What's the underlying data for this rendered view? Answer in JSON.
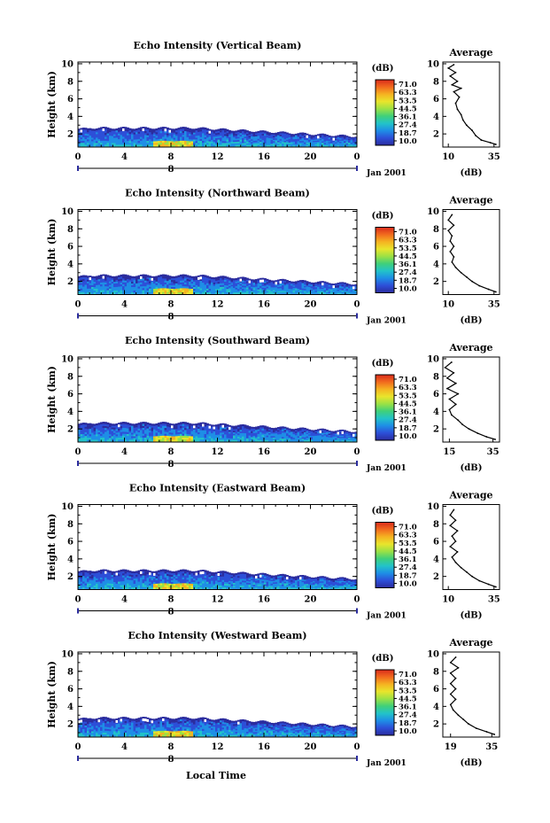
{
  "figure": {
    "bottom_xlabel": "Local Time",
    "colorbar_unit": "(dB)",
    "colorbar_labels": [
      "71.0",
      "63.3",
      "53.5",
      "44.5",
      "36.1",
      "27.4",
      "18.7",
      "10.0"
    ],
    "colorbar_colors": [
      "#d92a1b",
      "#f26b1e",
      "#f5b321",
      "#e9e52c",
      "#9be145",
      "#3fd07a",
      "#22c3c9",
      "#1e8ee6",
      "#2d4fd8",
      "#2b2c9e"
    ],
    "date_label": "Jan 2001",
    "cursor_label": "8"
  },
  "chart_data": [
    {
      "type": "heatmap",
      "title": "Echo Intensity (Vertical Beam)",
      "ylabel": "Height (km)",
      "x_ticks": [
        "0",
        "4",
        "8",
        "12",
        "16",
        "20",
        "0"
      ],
      "y_ticks": [
        "2",
        "4",
        "6",
        "8",
        "10"
      ],
      "xlim": [
        0,
        24
      ],
      "ylim": [
        0.5,
        10.2
      ],
      "profile": {
        "title": "Average",
        "xlabel": "(dB)",
        "x_ticks": [
          "10",
          "35"
        ],
        "xlim": [
          7,
          38
        ],
        "y_ticks": [
          "2",
          "4",
          "6",
          "8",
          "10"
        ],
        "points": [
          [
            36,
            0.8
          ],
          [
            33,
            1.0
          ],
          [
            28,
            1.3
          ],
          [
            25,
            1.8
          ],
          [
            23,
            2.4
          ],
          [
            20,
            3.0
          ],
          [
            18,
            3.6
          ],
          [
            17,
            4.2
          ],
          [
            15,
            4.8
          ],
          [
            14,
            5.5
          ],
          [
            16,
            6.2
          ],
          [
            13,
            6.8
          ],
          [
            17,
            7.2
          ],
          [
            12,
            7.6
          ],
          [
            15,
            8.0
          ],
          [
            11,
            8.6
          ],
          [
            14,
            9.0
          ],
          [
            10,
            9.5
          ],
          [
            13,
            9.9
          ]
        ]
      }
    },
    {
      "type": "heatmap",
      "title": "Echo Intensity (Northward Beam)",
      "ylabel": "Height (km)",
      "x_ticks": [
        "0",
        "4",
        "8",
        "12",
        "16",
        "20",
        "0"
      ],
      "y_ticks": [
        "2",
        "4",
        "6",
        "8",
        "10"
      ],
      "xlim": [
        0,
        24
      ],
      "ylim": [
        0.5,
        10.2
      ],
      "profile": {
        "title": "Average",
        "xlabel": "(dB)",
        "x_ticks": [
          "10",
          "35"
        ],
        "xlim": [
          7,
          38
        ],
        "y_ticks": [
          "2",
          "4",
          "6",
          "8",
          "10"
        ],
        "points": [
          [
            36,
            0.8
          ],
          [
            32,
            1.1
          ],
          [
            27,
            1.5
          ],
          [
            23,
            2.0
          ],
          [
            20,
            2.5
          ],
          [
            17,
            3.0
          ],
          [
            14,
            3.6
          ],
          [
            12,
            4.2
          ],
          [
            13,
            4.8
          ],
          [
            11,
            5.4
          ],
          [
            13,
            6.0
          ],
          [
            11,
            6.6
          ],
          [
            12,
            7.2
          ],
          [
            10,
            7.8
          ],
          [
            13,
            8.4
          ],
          [
            10,
            9.0
          ],
          [
            12,
            9.6
          ]
        ]
      }
    },
    {
      "type": "heatmap",
      "title": "Echo Intensity (Southward Beam)",
      "ylabel": "Height (km)",
      "x_ticks": [
        "0",
        "4",
        "8",
        "12",
        "16",
        "20",
        "0"
      ],
      "y_ticks": [
        "2",
        "4",
        "6",
        "8",
        "10"
      ],
      "xlim": [
        0,
        24
      ],
      "ylim": [
        0.5,
        10.2
      ],
      "profile": {
        "title": "Average",
        "xlabel": "(dB)",
        "x_ticks": [
          "15",
          "35"
        ],
        "xlim": [
          12,
          38
        ],
        "y_ticks": [
          "2",
          "4",
          "6",
          "8",
          "10"
        ],
        "points": [
          [
            36,
            0.8
          ],
          [
            32,
            1.1
          ],
          [
            28,
            1.5
          ],
          [
            24,
            2.0
          ],
          [
            21,
            2.5
          ],
          [
            19,
            3.0
          ],
          [
            16,
            3.6
          ],
          [
            15,
            4.2
          ],
          [
            18,
            4.8
          ],
          [
            15,
            5.4
          ],
          [
            19,
            6.0
          ],
          [
            14,
            6.6
          ],
          [
            18,
            7.2
          ],
          [
            14,
            7.8
          ],
          [
            17,
            8.4
          ],
          [
            13,
            9.0
          ],
          [
            16,
            9.6
          ]
        ]
      }
    },
    {
      "type": "heatmap",
      "title": "Echo Intensity (Eastward Beam)",
      "ylabel": "Height (km)",
      "x_ticks": [
        "0",
        "4",
        "8",
        "12",
        "16",
        "20",
        "0"
      ],
      "y_ticks": [
        "2",
        "4",
        "6",
        "8",
        "10"
      ],
      "xlim": [
        0,
        24
      ],
      "ylim": [
        0.5,
        10.2
      ],
      "profile": {
        "title": "Average",
        "xlabel": "(dB)",
        "x_ticks": [
          "10",
          "35"
        ],
        "xlim": [
          7,
          38
        ],
        "y_ticks": [
          "2",
          "4",
          "6",
          "8",
          "10"
        ],
        "points": [
          [
            36,
            0.8
          ],
          [
            32,
            1.1
          ],
          [
            27,
            1.5
          ],
          [
            23,
            2.0
          ],
          [
            20,
            2.5
          ],
          [
            17,
            3.0
          ],
          [
            14,
            3.6
          ],
          [
            12,
            4.2
          ],
          [
            15,
            4.8
          ],
          [
            11,
            5.4
          ],
          [
            14,
            6.0
          ],
          [
            12,
            6.6
          ],
          [
            15,
            7.2
          ],
          [
            11,
            7.8
          ],
          [
            14,
            8.4
          ],
          [
            11,
            9.0
          ],
          [
            13,
            9.6
          ]
        ]
      }
    },
    {
      "type": "heatmap",
      "title": "Echo Intensity (Westward Beam)",
      "ylabel": "Height (km)",
      "x_ticks": [
        "0",
        "4",
        "8",
        "12",
        "16",
        "20",
        "0"
      ],
      "y_ticks": [
        "2",
        "4",
        "6",
        "8",
        "10"
      ],
      "xlim": [
        0,
        24
      ],
      "ylim": [
        0.5,
        10.2
      ],
      "profile": {
        "title": "Average",
        "xlabel": "(dB)",
        "x_ticks": [
          "19",
          "35"
        ],
        "xlim": [
          16,
          38
        ],
        "y_ticks": [
          "2",
          "4",
          "6",
          "8",
          "10"
        ],
        "points": [
          [
            36,
            0.8
          ],
          [
            33,
            1.1
          ],
          [
            29,
            1.5
          ],
          [
            26,
            2.0
          ],
          [
            24,
            2.5
          ],
          [
            22,
            3.0
          ],
          [
            20,
            3.6
          ],
          [
            19,
            4.2
          ],
          [
            21,
            4.8
          ],
          [
            19,
            5.4
          ],
          [
            21,
            6.0
          ],
          [
            19,
            6.6
          ],
          [
            21,
            7.2
          ],
          [
            19,
            7.8
          ],
          [
            22,
            8.4
          ],
          [
            19,
            9.0
          ],
          [
            21,
            9.6
          ]
        ]
      }
    }
  ]
}
